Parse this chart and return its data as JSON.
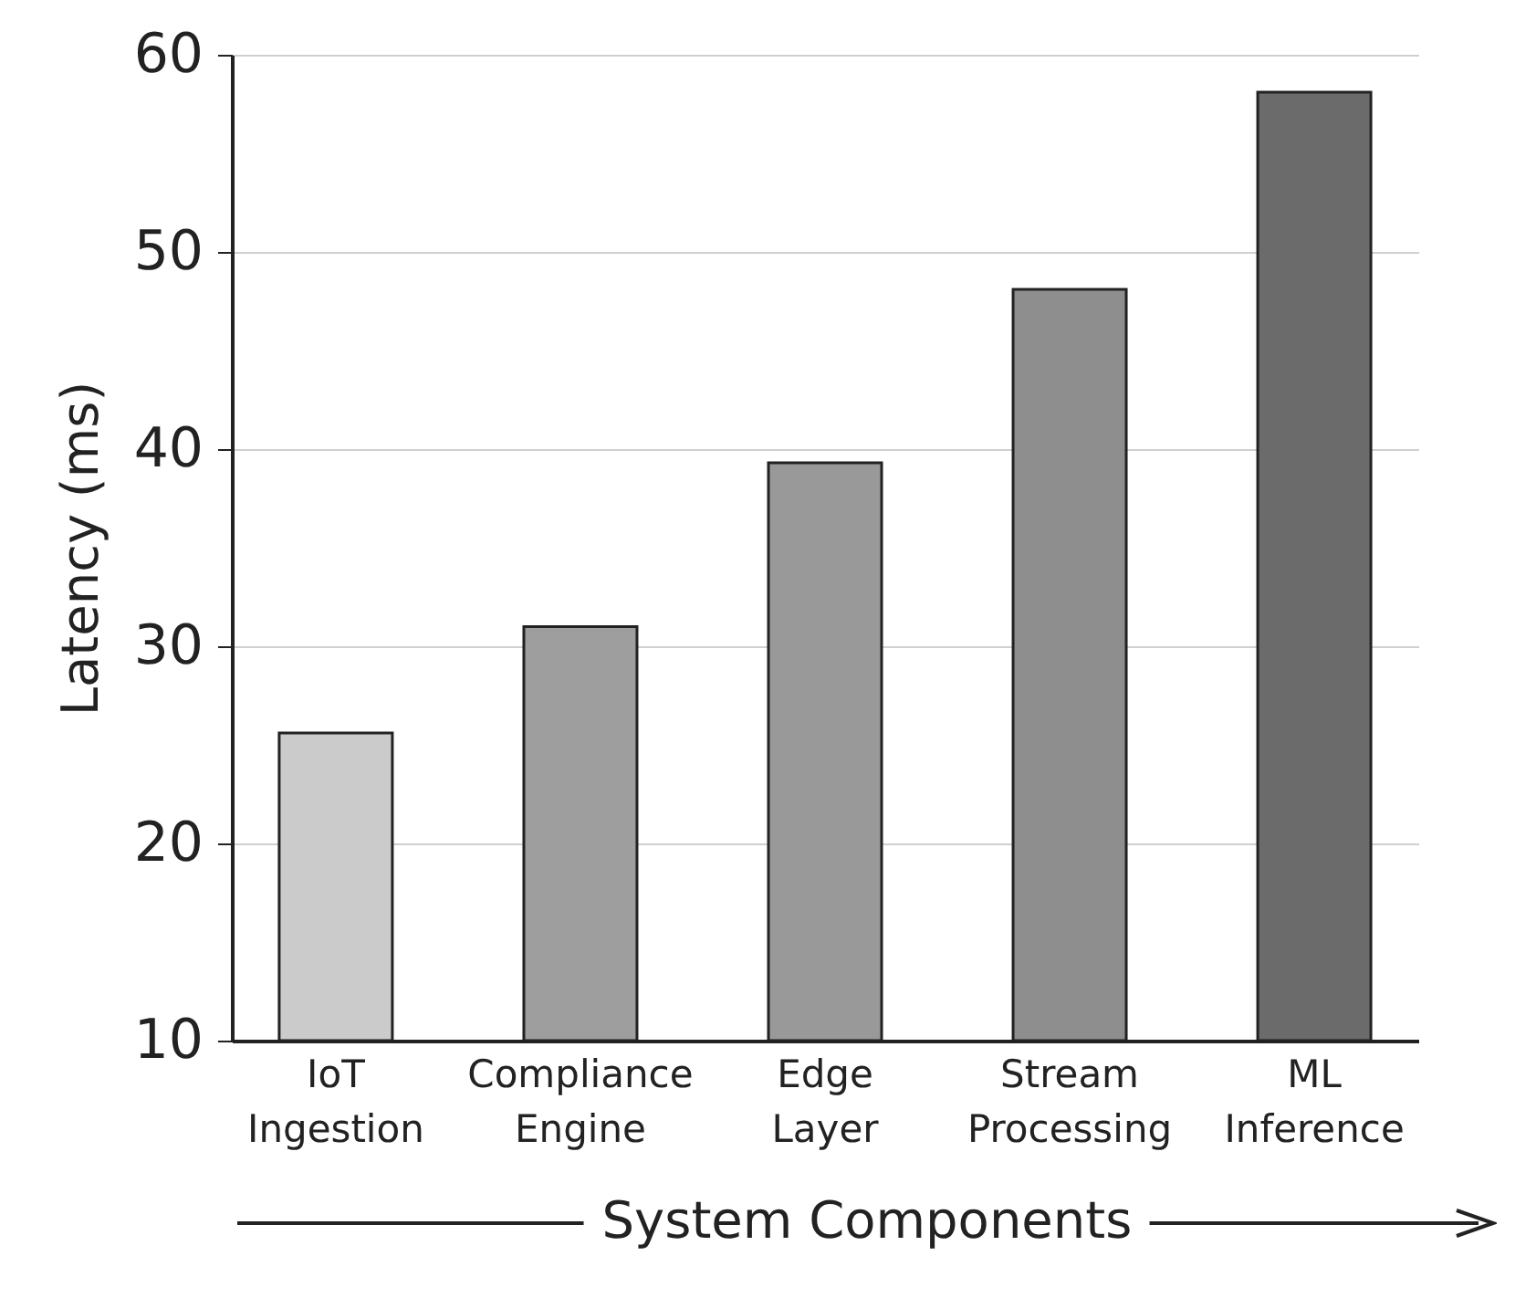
{
  "chart_data": {
    "type": "bar",
    "xlabel": "System Components",
    "ylabel": "Latency (ms)",
    "categories": [
      "IoT Ingestion",
      "Compliance Engine",
      "Edge Layer",
      "Stream Processing",
      "ML Inference"
    ],
    "values": [
      25.6,
      31,
      39.3,
      48.1,
      58.1
    ],
    "colors": [
      "#cbcbcb",
      "#9e9e9e",
      "#999999",
      "#8e8e8e",
      "#6b6b6b"
    ],
    "ylim": [
      10,
      60
    ],
    "yticks": [
      10,
      20,
      30,
      40,
      50,
      60
    ],
    "grid": "y"
  }
}
